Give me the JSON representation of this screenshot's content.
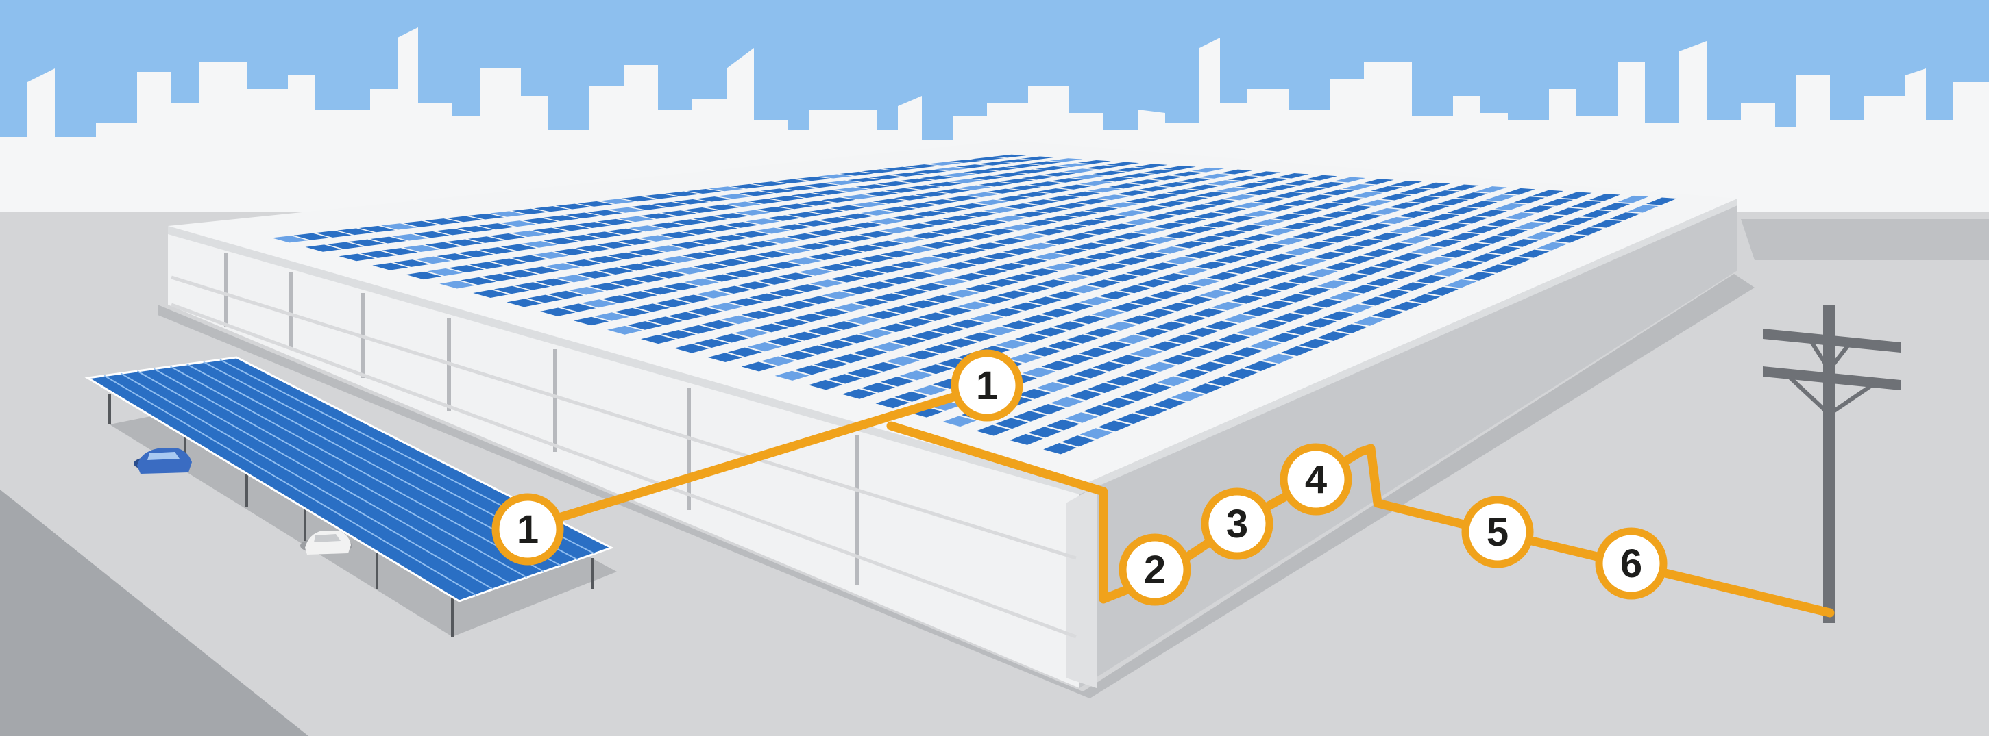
{
  "colors": {
    "sky": "#8dbfee",
    "skyline": "#f5f6f7",
    "ground": "#d4d5d7",
    "ground_dark": "#a4a7ab",
    "building_top": "#f2f3f4",
    "building_side": "#e2e3e5",
    "building_front": "#c3c5c8",
    "panel_blue": "#2a6fc4",
    "panel_light": "#6aa2e6",
    "wire": "#f0a21b",
    "pole": "#6e7176",
    "marker_fill": "#ffffff",
    "marker_text": "#1d1d1b"
  },
  "icons": [
    "skyline",
    "solar-panel-array",
    "carport",
    "car-icon",
    "utility-pole-icon"
  ],
  "markers": [
    {
      "id": "rooftop-array",
      "label": "1"
    },
    {
      "id": "carport-array",
      "label": "1"
    },
    {
      "id": "step-2",
      "label": "2"
    },
    {
      "id": "step-3",
      "label": "3"
    },
    {
      "id": "step-4",
      "label": "4"
    },
    {
      "id": "step-5",
      "label": "5"
    },
    {
      "id": "step-6",
      "label": "6"
    }
  ]
}
